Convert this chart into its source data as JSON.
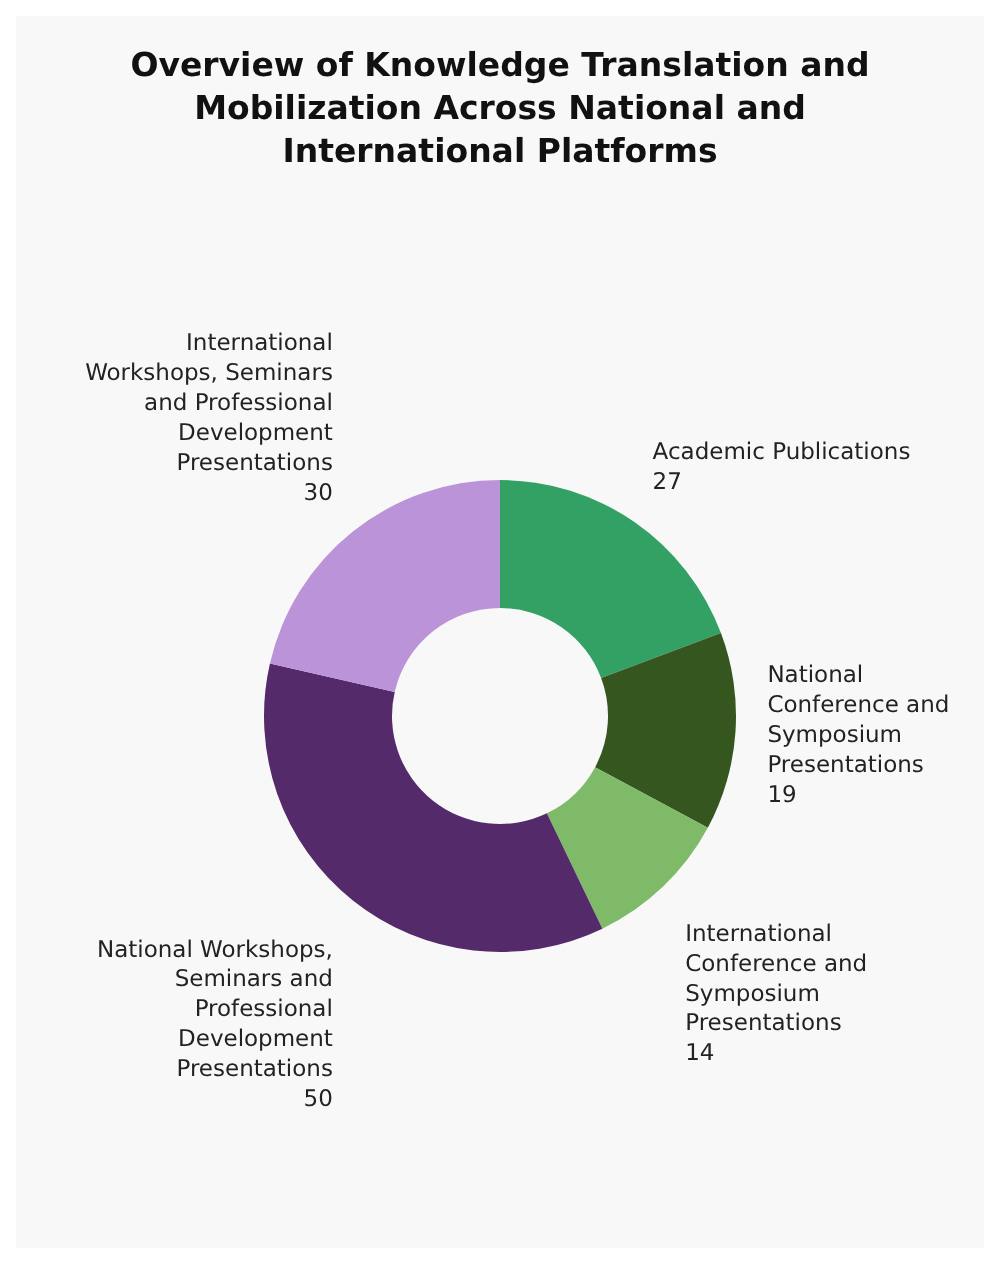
{
  "chart_data": {
    "type": "donut",
    "title": "Overview of Knowledge Translation and Mobilization Across National and International Platforms",
    "categories": [
      "Academic Publications",
      "National Conference and Symposium Presentations",
      "International Conference and Symposium Presentations",
      "National Workshops, Seminars and Professional Development Presentations",
      "International Workshops, Seminars and Professional Development Presentations"
    ],
    "values": [
      27,
      19,
      14,
      50,
      30
    ],
    "colors": [
      "#33a064",
      "#36561f",
      "#7fba68",
      "#542a6b",
      "#bb93d8"
    ],
    "data_labels": true
  }
}
